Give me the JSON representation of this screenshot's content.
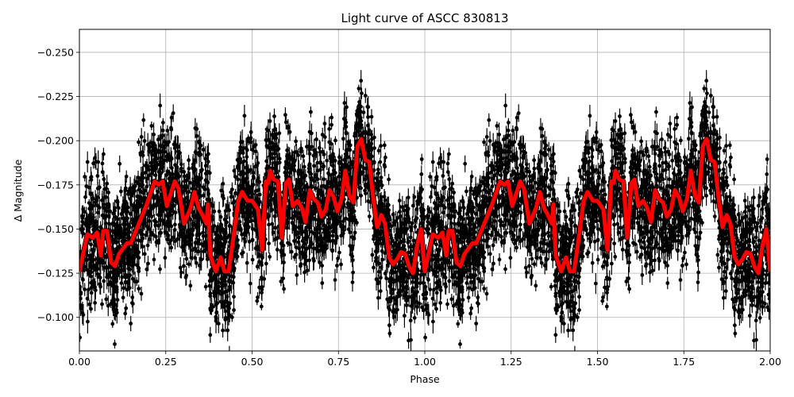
{
  "chart_data": {
    "type": "scatter",
    "title": "Light curve of ASCC 830813",
    "xlabel": "Phase",
    "ylabel": "Δ Magnitude",
    "xlim": [
      0.0,
      2.0
    ],
    "ylim": [
      -0.081,
      -0.263
    ],
    "y_inverted": true,
    "grid": true,
    "legend": null,
    "xticks": [
      "0.00",
      "0.25",
      "0.50",
      "0.75",
      "1.00",
      "1.25",
      "1.50",
      "1.75",
      "2.00"
    ],
    "xtick_values": [
      0.0,
      0.25,
      0.5,
      0.75,
      1.0,
      1.25,
      1.5,
      1.75,
      2.0
    ],
    "yticks": [
      "−0.250",
      "−0.225",
      "−0.200",
      "−0.175",
      "−0.150",
      "−0.125",
      "−0.100"
    ],
    "ytick_values": [
      -0.25,
      -0.225,
      -0.2,
      -0.175,
      -0.15,
      -0.125,
      -0.1
    ],
    "series": [
      {
        "name": "observations",
        "kind": "errorbar-scatter",
        "color": "#000000",
        "description": "dense black points with vertical error bars, phase-folded and repeated over 0-2",
        "approx_count": 6000,
        "magnitude_range": [
          -0.265,
          -0.082
        ]
      },
      {
        "name": "binned mean",
        "kind": "line",
        "color": "#ff0000",
        "linewidth": 5,
        "period_repeat": true,
        "x": [
          0.0,
          0.023,
          0.039,
          0.051,
          0.062,
          0.069,
          0.08,
          0.092,
          0.103,
          0.115,
          0.138,
          0.149,
          0.172,
          0.195,
          0.218,
          0.23,
          0.241,
          0.253,
          0.276,
          0.287,
          0.303,
          0.322,
          0.333,
          0.345,
          0.356,
          0.368,
          0.372,
          0.379,
          0.395,
          0.409,
          0.42,
          0.432,
          0.443,
          0.46,
          0.471,
          0.487,
          0.5,
          0.517,
          0.529,
          0.54,
          0.547,
          0.552,
          0.563,
          0.575,
          0.586,
          0.598,
          0.607,
          0.618,
          0.632,
          0.644,
          0.655,
          0.667,
          0.678,
          0.69,
          0.701,
          0.713,
          0.724,
          0.736,
          0.747,
          0.759,
          0.77,
          0.782,
          0.793,
          0.805,
          0.816,
          0.828,
          0.839,
          0.851,
          0.862,
          0.874,
          0.885,
          0.897,
          0.908,
          0.92,
          0.931,
          0.943,
          0.954,
          0.966,
          0.977,
          0.989,
          1.0
        ],
        "y": [
          -0.126,
          -0.147,
          -0.145,
          -0.148,
          -0.135,
          -0.149,
          -0.149,
          -0.131,
          -0.129,
          -0.136,
          -0.142,
          -0.142,
          -0.153,
          -0.164,
          -0.177,
          -0.175,
          -0.177,
          -0.163,
          -0.177,
          -0.173,
          -0.153,
          -0.162,
          -0.171,
          -0.162,
          -0.158,
          -0.153,
          -0.164,
          -0.135,
          -0.126,
          -0.134,
          -0.126,
          -0.126,
          -0.141,
          -0.166,
          -0.171,
          -0.166,
          -0.166,
          -0.161,
          -0.138,
          -0.177,
          -0.176,
          -0.183,
          -0.178,
          -0.177,
          -0.145,
          -0.176,
          -0.178,
          -0.163,
          -0.166,
          -0.162,
          -0.154,
          -0.172,
          -0.167,
          -0.165,
          -0.157,
          -0.161,
          -0.172,
          -0.168,
          -0.16,
          -0.167,
          -0.183,
          -0.169,
          -0.165,
          -0.197,
          -0.201,
          -0.189,
          -0.188,
          -0.167,
          -0.151,
          -0.158,
          -0.153,
          -0.134,
          -0.13,
          -0.133,
          -0.137,
          -0.136,
          -0.129,
          -0.125,
          -0.14,
          -0.15,
          -0.126
        ]
      }
    ]
  }
}
